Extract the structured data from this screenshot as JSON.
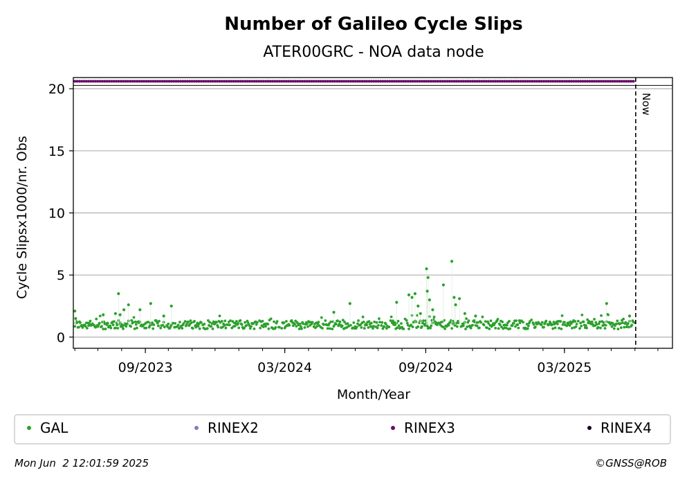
{
  "chart_data": {
    "type": "scatter",
    "title": "Number of Galileo Cycle Slips",
    "subtitle": "ATER00GRC - NOA data node",
    "xlabel": "Month/Year",
    "ylabel": "Cycle Slipsx1000/nr. Obs",
    "x_range": [
      "2023-05-30",
      "2025-07-20"
    ],
    "ylim": [
      -0.9,
      20.9
    ],
    "y_ticks": [
      "0",
      "5",
      "10",
      "15",
      "20"
    ],
    "y_tick_values": [
      0,
      5,
      10,
      15,
      20
    ],
    "x_ticks": [
      "09/2023",
      "03/2024",
      "09/2024",
      "03/2025"
    ],
    "x_tick_dates": [
      "2023-09-01",
      "2024-03-01",
      "2024-09-01",
      "2025-03-01"
    ],
    "grid": "horizontal",
    "now_label": "Now",
    "now_date": "2025-06-02",
    "series": [
      {
        "name": "GAL",
        "color": "#2ca02c",
        "start": "2023-06-01",
        "end": "2025-06-01",
        "typical_value": 1.0,
        "highlights": [
          {
            "date": "2023-06-01",
            "value": 2.1
          },
          {
            "date": "2023-06-02",
            "value": 1.5
          },
          {
            "date": "2023-07-08",
            "value": 1.8
          },
          {
            "date": "2023-07-24",
            "value": 1.9
          },
          {
            "date": "2023-07-28",
            "value": 3.5
          },
          {
            "date": "2023-07-30",
            "value": 1.8
          },
          {
            "date": "2023-08-04",
            "value": 2.2
          },
          {
            "date": "2023-08-10",
            "value": 2.6
          },
          {
            "date": "2023-08-25",
            "value": 2.2
          },
          {
            "date": "2023-09-08",
            "value": 2.7
          },
          {
            "date": "2023-09-25",
            "value": 1.7
          },
          {
            "date": "2023-10-05",
            "value": 2.5
          },
          {
            "date": "2024-05-04",
            "value": 2.0
          },
          {
            "date": "2024-05-25",
            "value": 2.7
          },
          {
            "date": "2024-07-25",
            "value": 2.8
          },
          {
            "date": "2024-08-10",
            "value": 3.4
          },
          {
            "date": "2024-08-14",
            "value": 3.2
          },
          {
            "date": "2024-08-18",
            "value": 3.5
          },
          {
            "date": "2024-08-22",
            "value": 2.5
          },
          {
            "date": "2024-08-25",
            "value": 1.9
          },
          {
            "date": "2024-09-02",
            "value": 5.5
          },
          {
            "date": "2024-09-04",
            "value": 4.8
          },
          {
            "date": "2024-09-03",
            "value": 3.7
          },
          {
            "date": "2024-09-06",
            "value": 3.0
          },
          {
            "date": "2024-09-10",
            "value": 2.2
          },
          {
            "date": "2024-09-24",
            "value": 4.2
          },
          {
            "date": "2024-10-05",
            "value": 6.1
          },
          {
            "date": "2024-10-08",
            "value": 3.2
          },
          {
            "date": "2024-10-10",
            "value": 2.6
          },
          {
            "date": "2024-10-15",
            "value": 3.1
          },
          {
            "date": "2024-10-22",
            "value": 1.9
          },
          {
            "date": "2024-11-05",
            "value": 1.7
          },
          {
            "date": "2025-04-25",
            "value": 2.7
          },
          {
            "date": "2025-05-25",
            "value": 1.7
          }
        ]
      },
      {
        "name": "RINEX2",
        "color": "#7f7fbf"
      },
      {
        "name": "RINEX3",
        "color": "#6a0a6a",
        "start": "2023-06-01",
        "end": "2025-06-01",
        "value": 20.6
      },
      {
        "name": "RINEX4",
        "color": "#1a0520"
      }
    ],
    "legend_position": "bottom"
  },
  "footer": {
    "timestamp": "Mon Jun  2 12:01:59 2025",
    "credit": "©GNSS@ROB"
  }
}
